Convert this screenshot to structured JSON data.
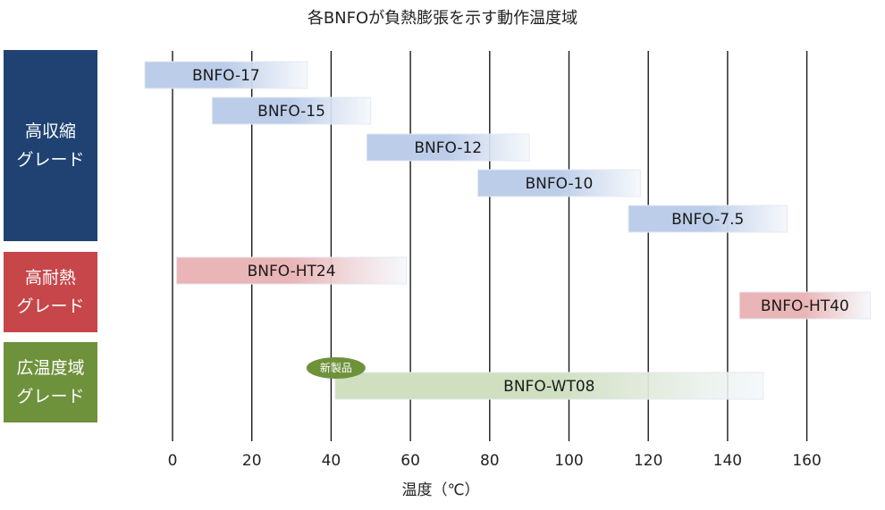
{
  "chart_data": {
    "type": "range-bar",
    "title": "各BNFOが負熱膨張を示す動作温度域",
    "xlabel": "温度（℃）",
    "xlim": [
      -7,
      176
    ],
    "xticks": [
      0,
      20,
      40,
      60,
      80,
      100,
      120,
      140,
      160
    ],
    "grid": "vertical",
    "groups": [
      {
        "label": "高収縮\nグレード",
        "color": "#1f4272"
      },
      {
        "label": "高耐熱\nグレード",
        "color": "#c6464a"
      },
      {
        "label": "広温度域\nグレード",
        "color": "#6e923c"
      }
    ],
    "bars": [
      {
        "name": "BNFO-17",
        "group": 0,
        "start": -7,
        "end": 34,
        "color": "#bccde9"
      },
      {
        "name": "BNFO-15",
        "group": 0,
        "start": 10,
        "end": 50,
        "color": "#bccde9"
      },
      {
        "name": "BNFO-12",
        "group": 0,
        "start": 49,
        "end": 90,
        "color": "#bccde9"
      },
      {
        "name": "BNFO-10",
        "group": 0,
        "start": 77,
        "end": 118,
        "color": "#bccde9"
      },
      {
        "name": "BNFO-7.5",
        "group": 0,
        "start": 115,
        "end": 155,
        "color": "#bccde9"
      },
      {
        "name": "BNFO-HT24",
        "group": 1,
        "start": 1,
        "end": 59,
        "color": "#eab5b6"
      },
      {
        "name": "BNFO-HT40",
        "group": 1,
        "start": 143,
        "end": 176,
        "color": "#eab5b6"
      },
      {
        "name": "BNFO-WT08",
        "group": 2,
        "start": 41,
        "end": 149,
        "color": "#cfdfc0",
        "badge": "新製品"
      }
    ],
    "badge_color": "#6e923c"
  }
}
